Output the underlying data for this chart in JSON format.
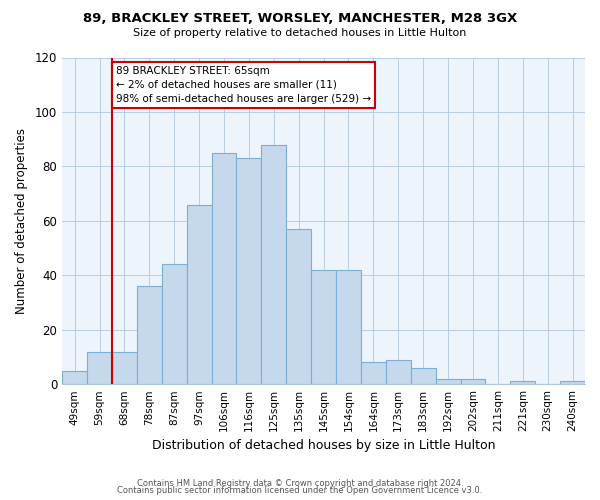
{
  "title": "89, BRACKLEY STREET, WORSLEY, MANCHESTER, M28 3GX",
  "subtitle": "Size of property relative to detached houses in Little Hulton",
  "xlabel": "Distribution of detached houses by size in Little Hulton",
  "ylabel": "Number of detached properties",
  "bar_labels": [
    "49sqm",
    "59sqm",
    "68sqm",
    "78sqm",
    "87sqm",
    "97sqm",
    "106sqm",
    "116sqm",
    "125sqm",
    "135sqm",
    "145sqm",
    "154sqm",
    "164sqm",
    "173sqm",
    "183sqm",
    "192sqm",
    "202sqm",
    "211sqm",
    "221sqm",
    "230sqm",
    "240sqm"
  ],
  "bar_heights": [
    5,
    12,
    12,
    36,
    44,
    66,
    85,
    83,
    88,
    57,
    42,
    42,
    8,
    9,
    6,
    2,
    2,
    0,
    1,
    0,
    1
  ],
  "bar_color": "#c6d9ec",
  "bar_edge_color": "#7aafd4",
  "ylim": [
    0,
    120
  ],
  "yticks": [
    0,
    20,
    40,
    60,
    80,
    100,
    120
  ],
  "property_line_bar_idx": 2,
  "property_line_label": "89 BRACKLEY STREET: 65sqm",
  "annotation_line1": "← 2% of detached houses are smaller (11)",
  "annotation_line2": "98% of semi-detached houses are larger (529) →",
  "annotation_box_color": "#ffffff",
  "annotation_box_edge_color": "#cc0000",
  "line_color": "#cc0000",
  "footer_line1": "Contains HM Land Registry data © Crown copyright and database right 2024.",
  "footer_line2": "Contains public sector information licensed under the Open Government Licence v3.0.",
  "bg_color": "#eef4fb"
}
